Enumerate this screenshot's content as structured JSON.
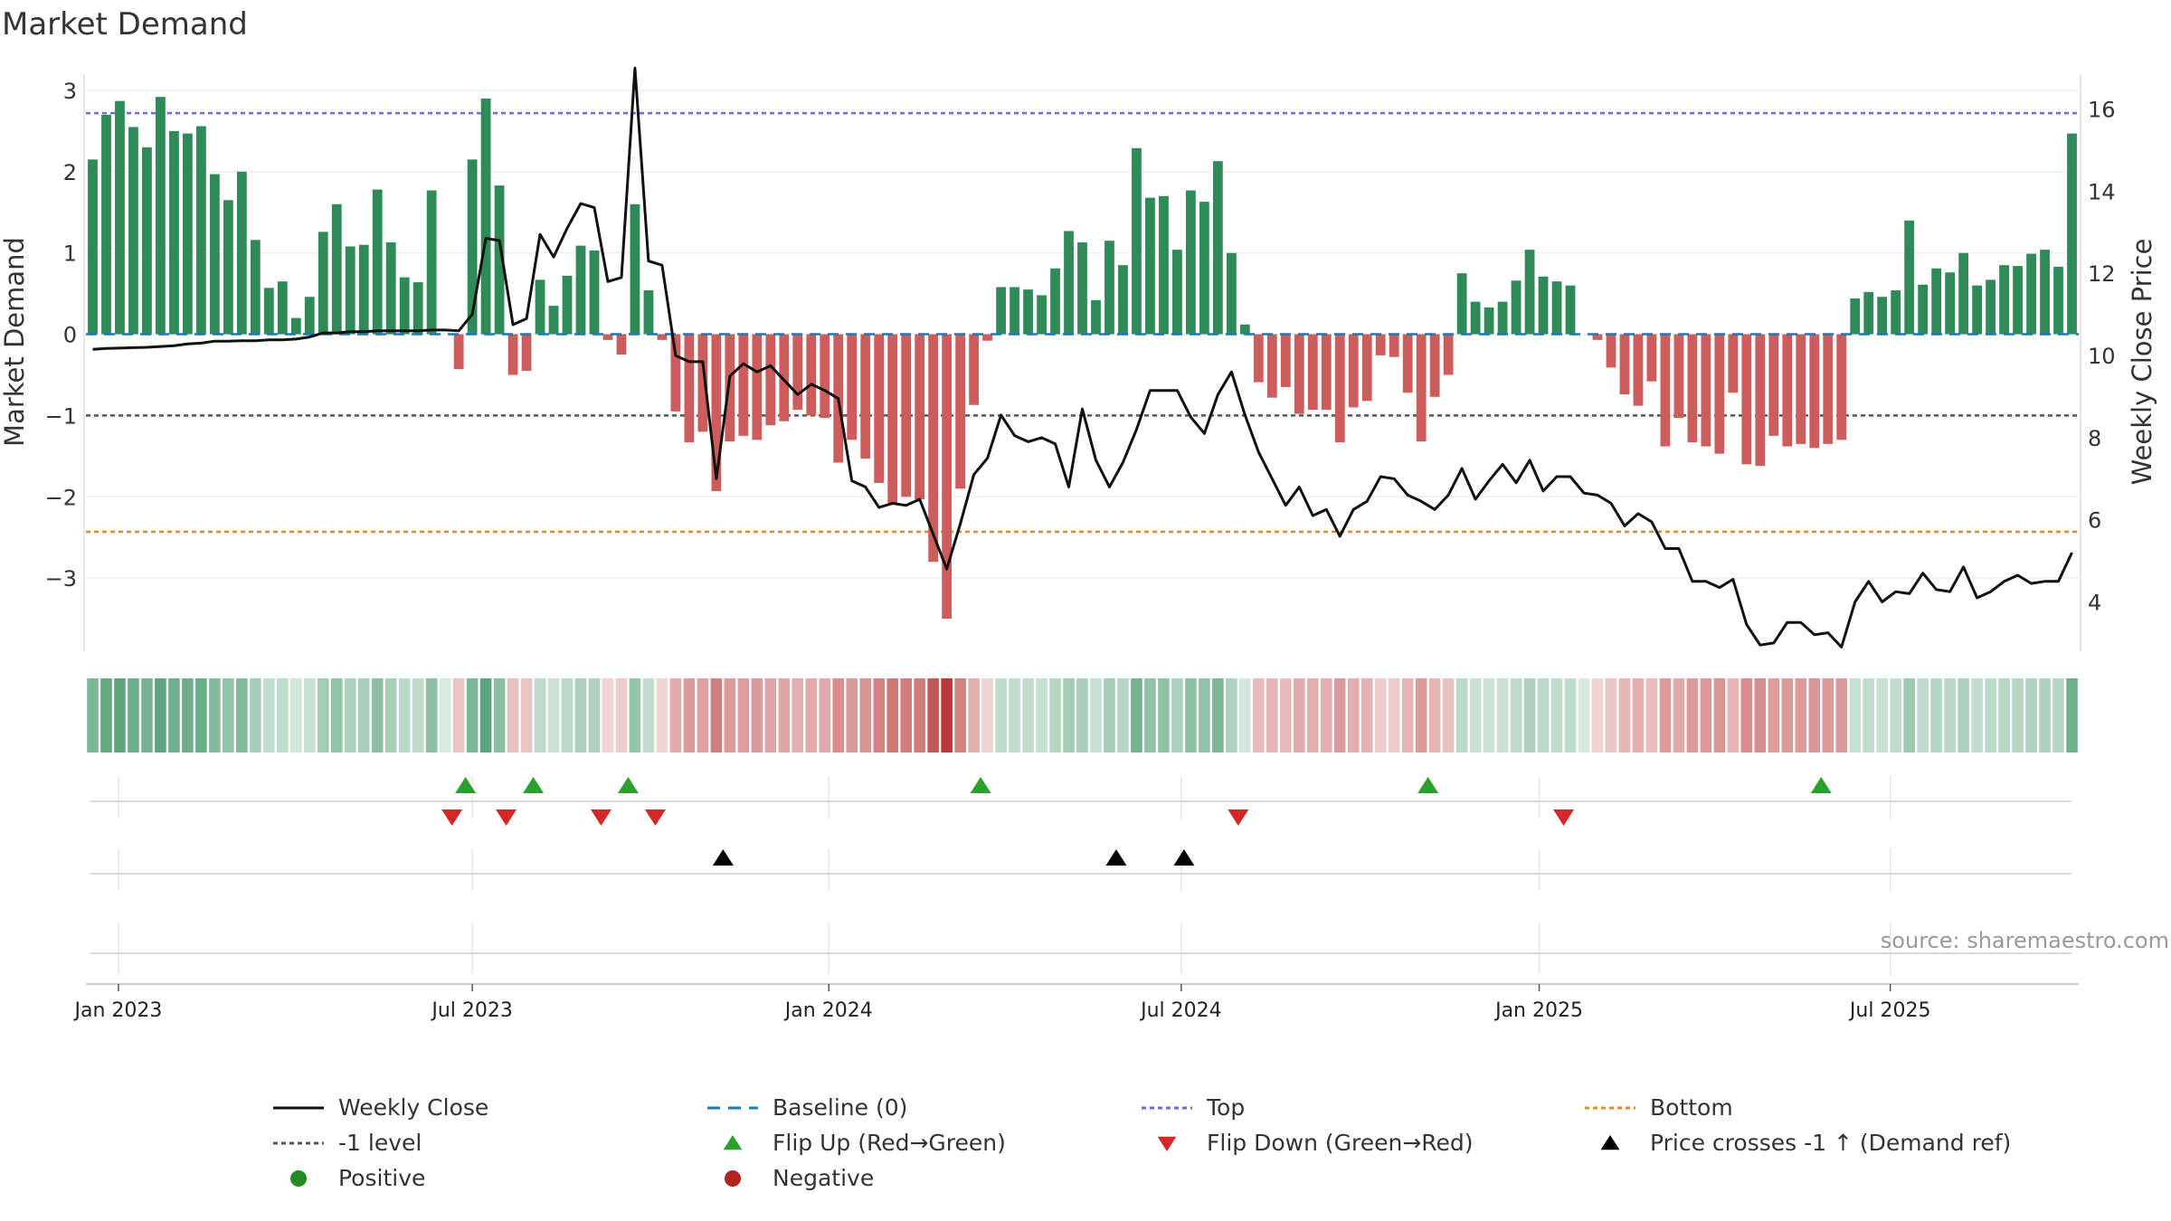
{
  "chart_data": {
    "type": "bar",
    "title": "Market Demand",
    "ylabel": "Market Demand",
    "y2label": "Weekly Close Price",
    "ylim": [
      -3.9,
      3.2
    ],
    "y2lim": [
      2.8,
      16.85
    ],
    "yticks": [
      3,
      2,
      1,
      0,
      -1,
      -2,
      -3
    ],
    "ytick_labels": [
      "3",
      "2",
      "1",
      "0",
      "−1",
      "−2",
      "−3"
    ],
    "y2ticks": [
      16,
      14,
      12,
      10,
      8,
      6,
      4
    ],
    "y2tick_labels": [
      "16",
      "14",
      "12",
      "10",
      "8",
      "6",
      "4"
    ],
    "x_start": "2022-12-19",
    "weeks": 145,
    "xticks": [
      {
        "label": "Jan 2023",
        "week": 1.9
      },
      {
        "label": "Jul 2023",
        "week": 28.0
      },
      {
        "label": "Jan 2024",
        "week": 54.3
      },
      {
        "label": "Jul 2024",
        "week": 80.3
      },
      {
        "label": "Jan 2025",
        "week": 106.7
      },
      {
        "label": "Jul 2025",
        "week": 132.6
      }
    ],
    "reference_lines": {
      "top": 2.72,
      "level": -1.0,
      "bottom": -2.43,
      "baseline": 0
    },
    "demand": [
      2.15,
      2.7,
      2.87,
      2.55,
      2.3,
      2.92,
      2.5,
      2.47,
      2.56,
      1.97,
      1.65,
      2.0,
      1.16,
      0.57,
      0.65,
      0.2,
      0.46,
      1.26,
      1.6,
      1.08,
      1.1,
      1.78,
      1.13,
      0.7,
      0.64,
      1.77,
      0.0,
      -0.43,
      2.15,
      2.9,
      1.83,
      -0.5,
      -0.45,
      0.67,
      0.35,
      0.72,
      1.09,
      1.03,
      -0.07,
      -0.25,
      1.6,
      0.54,
      -0.07,
      -0.95,
      -1.33,
      -1.2,
      -1.93,
      -1.32,
      -1.25,
      -1.3,
      -1.12,
      -1.07,
      -0.93,
      -1.0,
      -1.03,
      -1.58,
      -1.3,
      -1.53,
      -1.83,
      -2.1,
      -2.0,
      -2.03,
      -2.8,
      -3.5,
      -1.9,
      -0.87,
      -0.08,
      0.58,
      0.58,
      0.55,
      0.48,
      0.81,
      1.27,
      1.13,
      0.42,
      1.15,
      0.85,
      2.29,
      1.68,
      1.7,
      1.04,
      1.77,
      1.63,
      2.13,
      1.0,
      0.12,
      -0.59,
      -0.78,
      -0.65,
      -0.98,
      -0.93,
      -0.93,
      -1.33,
      -0.9,
      -0.82,
      -0.26,
      -0.28,
      -0.72,
      -1.32,
      -0.77,
      -0.5,
      0.75,
      0.4,
      0.33,
      0.4,
      0.66,
      1.04,
      0.71,
      0.65,
      0.6,
      0.0,
      -0.07,
      -0.41,
      -0.74,
      -0.88,
      -0.58,
      -1.38,
      -1.03,
      -1.33,
      -1.38,
      -1.47,
      -0.72,
      -1.6,
      -1.62,
      -1.25,
      -1.38,
      -1.35,
      -1.4,
      -1.35,
      -1.3,
      0.44,
      0.52,
      0.46,
      0.54,
      1.4,
      0.61,
      0.81,
      0.76,
      1.0,
      0.6,
      0.67,
      0.85,
      0.84,
      0.99,
      1.04,
      0.83,
      2.47
    ],
    "close": [
      10.15,
      10.17,
      10.18,
      10.19,
      10.2,
      10.22,
      10.24,
      10.28,
      10.3,
      10.35,
      10.35,
      10.36,
      10.36,
      10.38,
      10.38,
      10.4,
      10.45,
      10.55,
      10.55,
      10.58,
      10.58,
      10.6,
      10.6,
      10.6,
      10.6,
      10.62,
      10.62,
      10.6,
      11.0,
      12.85,
      12.8,
      10.75,
      10.9,
      12.95,
      12.4,
      13.1,
      13.7,
      13.6,
      11.8,
      11.9,
      17.0,
      12.3,
      12.2,
      10.0,
      9.85,
      9.85,
      7.0,
      9.5,
      9.8,
      9.6,
      9.75,
      9.4,
      9.05,
      9.3,
      9.15,
      8.95,
      6.95,
      6.8,
      6.3,
      6.4,
      6.35,
      6.5,
      5.65,
      4.8,
      5.9,
      7.1,
      7.5,
      8.55,
      8.05,
      7.9,
      8.0,
      7.85,
      6.8,
      8.7,
      7.45,
      6.8,
      7.4,
      8.2,
      9.15,
      9.15,
      9.15,
      8.5,
      8.1,
      9.05,
      9.6,
      8.55,
      7.65,
      7.0,
      6.35,
      6.8,
      6.1,
      6.25,
      5.6,
      6.25,
      6.45,
      7.05,
      7.0,
      6.6,
      6.45,
      6.25,
      6.6,
      7.25,
      6.5,
      6.95,
      7.35,
      6.9,
      7.45,
      6.7,
      7.05,
      7.05,
      6.65,
      6.6,
      6.4,
      5.85,
      6.15,
      5.95,
      5.3,
      5.3,
      4.5,
      4.5,
      4.35,
      4.55,
      3.45,
      2.95,
      3.0,
      3.5,
      3.5,
      3.2,
      3.25,
      2.9,
      4.0,
      4.5,
      4.0,
      4.25,
      4.2,
      4.7,
      4.3,
      4.25,
      4.85,
      4.1,
      4.25,
      4.5,
      4.65,
      4.45,
      4.5,
      4.5,
      5.2
    ],
    "flip_up_weeks": [
      27.5,
      32.5,
      39.5,
      65.5,
      98.5,
      127.5
    ],
    "flip_down_weeks": [
      26.5,
      30.5,
      37.5,
      41.5,
      84.5,
      108.5
    ],
    "price_cross_weeks": [
      46.5,
      75.5,
      80.5
    ],
    "source_text": "source: sharemaestro.com",
    "colors": {
      "positive_bar": "#2e8b57",
      "negative_bar": "#cd5c5c",
      "close_line": "#111111",
      "baseline": "#1f77b4",
      "top": "#6b6bd6",
      "level": "#555555",
      "bottom": "#e08a2e",
      "flip_up": "#2ca02c",
      "flip_down": "#d62728",
      "cross": "#000000",
      "heat_pos": "#2e8b57",
      "heat_neg": "#b22222"
    }
  },
  "legend": [
    {
      "label": "Weekly Close",
      "type": "line",
      "color": "#111111",
      "dash": ""
    },
    {
      "label": "Baseline (0)",
      "type": "line",
      "color": "#1f77b4",
      "dash": "14,9"
    },
    {
      "label": "Top",
      "type": "line",
      "color": "#6b6bd6",
      "dash": "5,4"
    },
    {
      "label": "Bottom",
      "type": "line",
      "color": "#e08a2e",
      "dash": "5,4"
    },
    {
      "label": "-1 level",
      "type": "line",
      "color": "#555555",
      "dash": "5,4"
    },
    {
      "label": "Flip Up (Red→Green)",
      "type": "tri-up",
      "color": "#2ca02c"
    },
    {
      "label": "Flip Down (Green→Red)",
      "type": "tri-down",
      "color": "#d62728"
    },
    {
      "label": "Price crosses -1 ↑ (Demand ref)",
      "type": "tri-up",
      "color": "#000000"
    },
    {
      "label": "Positive",
      "type": "dot",
      "color": "#228b22"
    },
    {
      "label": "Negative",
      "type": "dot",
      "color": "#b22222"
    }
  ]
}
